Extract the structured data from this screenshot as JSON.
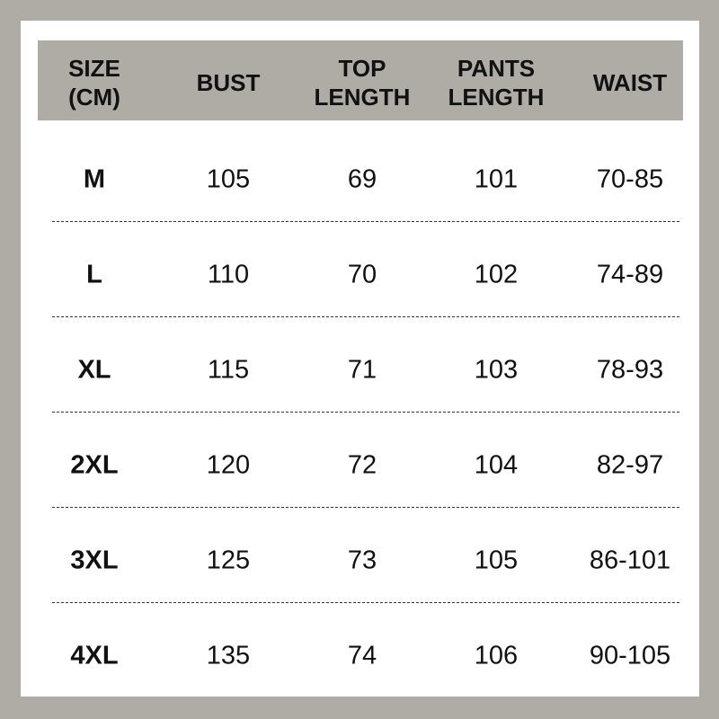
{
  "table": {
    "headers": [
      [
        "SIZE",
        "(CM)"
      ],
      [
        "BUST"
      ],
      [
        "TOP",
        "LENGTH"
      ],
      [
        "PANTS",
        "LENGTH"
      ],
      [
        "WAIST"
      ]
    ],
    "rows": [
      [
        "M",
        105,
        69,
        101,
        "70-85"
      ],
      [
        "L",
        110,
        70,
        102,
        "74-89"
      ],
      [
        "XL",
        115,
        71,
        103,
        "78-93"
      ],
      [
        "2XL",
        120,
        72,
        104,
        "82-97"
      ],
      [
        "3XL",
        125,
        73,
        105,
        "86-101"
      ],
      [
        "4XL",
        135,
        74,
        106,
        "90-105"
      ]
    ]
  }
}
